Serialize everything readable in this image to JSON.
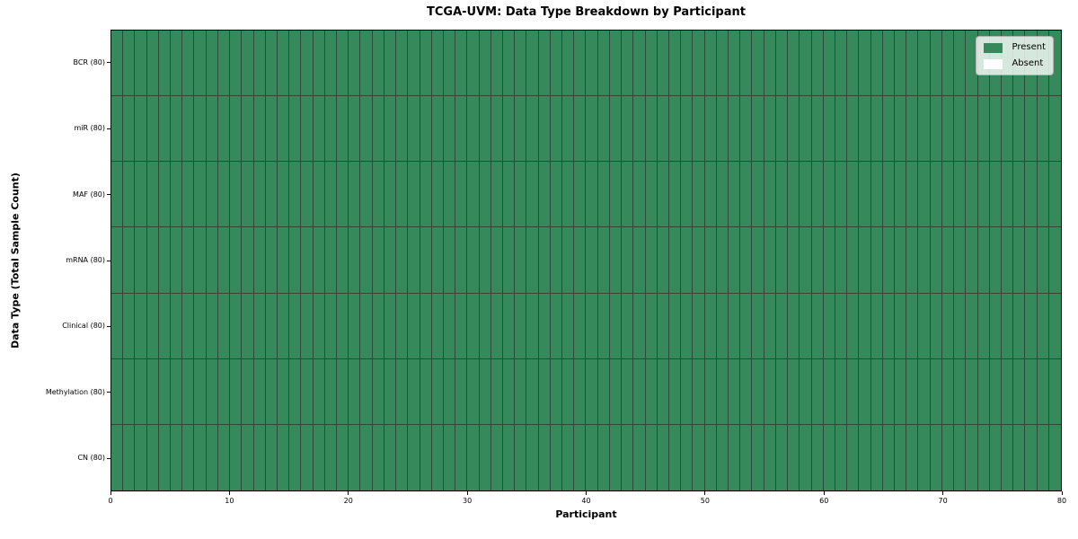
{
  "chart_data": {
    "type": "heatmap",
    "title": "TCGA-UVM: Data Type Breakdown by Participant",
    "xlabel": "Participant",
    "ylabel": "Data Type (Total Sample Count)",
    "xlim": [
      0,
      80
    ],
    "x_ticks": [
      "0",
      "10",
      "20",
      "30",
      "40",
      "50",
      "60",
      "70",
      "80"
    ],
    "n_participants": 80,
    "n_rows": 7,
    "cell_encoding": {
      "present": 1,
      "absent": 0
    },
    "rows": [
      {
        "label": "BCR (80)",
        "data_type": "BCR",
        "total_sample_count": 80,
        "present_count": 80,
        "absent_count": 0
      },
      {
        "label": "miR (80)",
        "data_type": "miR",
        "total_sample_count": 80,
        "present_count": 80,
        "absent_count": 0
      },
      {
        "label": "MAF (80)",
        "data_type": "MAF",
        "total_sample_count": 80,
        "present_count": 80,
        "absent_count": 0
      },
      {
        "label": "mRNA (80)",
        "data_type": "mRNA",
        "total_sample_count": 80,
        "present_count": 80,
        "absent_count": 0
      },
      {
        "label": "Clinical (80)",
        "data_type": "Clinical",
        "total_sample_count": 80,
        "present_count": 80,
        "absent_count": 0
      },
      {
        "label": "Methylation (80)",
        "data_type": "Methylation",
        "total_sample_count": 80,
        "present_count": 80,
        "absent_count": 0
      },
      {
        "label": "CN (80)",
        "data_type": "CN",
        "total_sample_count": 80,
        "present_count": 80,
        "absent_count": 0
      }
    ],
    "legend": {
      "position": "upper right",
      "entries": [
        {
          "label": "Present",
          "color": "#35895a"
        },
        {
          "label": "Absent",
          "color": "#ffffff"
        }
      ]
    },
    "colors": {
      "present": "#35895a",
      "absent": "#ffffff",
      "cell_border": "#2c4a37",
      "spine": "#000000",
      "background": "#ffffff"
    },
    "grid": false
  }
}
